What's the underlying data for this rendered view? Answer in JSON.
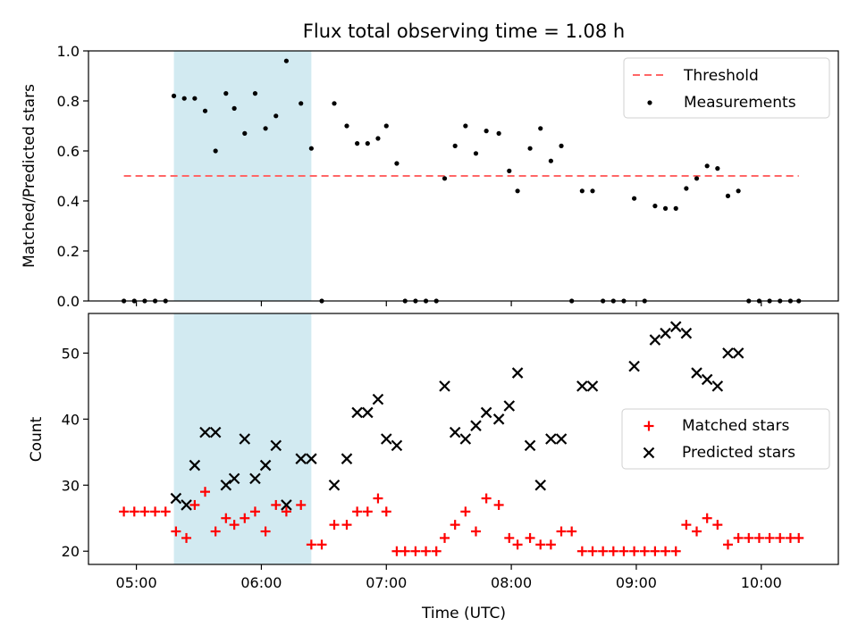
{
  "chart_data": [
    {
      "type": "scatter",
      "title": "Flux total observing time = 1.08 h",
      "xlabel": "",
      "ylabel": "Matched/Predicted stars",
      "ylim": [
        0,
        1.0
      ],
      "yticks": [
        "0.0",
        "0.2",
        "0.4",
        "0.6",
        "0.8",
        "1.0"
      ],
      "legend_position": "top-right",
      "shaded_interval": {
        "start": "05:18",
        "end": "06:24",
        "color": "#add8e6"
      },
      "threshold": {
        "name": "Threshold",
        "value": 0.5,
        "x_start": "04:54",
        "x_end": "10:18",
        "color": "#ff6666"
      },
      "series": [
        {
          "name": "Measurements",
          "marker": "dot",
          "color": "#000000",
          "x": [
            "04:54",
            "04:59",
            "05:04",
            "05:09",
            "05:14",
            "05:18",
            "05:23",
            "05:28",
            "05:33",
            "05:38",
            "05:43",
            "05:47",
            "05:52",
            "05:57",
            "06:02",
            "06:07",
            "06:12",
            "06:19",
            "06:24",
            "06:29",
            "06:35",
            "06:41",
            "06:46",
            "06:51",
            "06:56",
            "07:00",
            "07:05",
            "07:09",
            "07:14",
            "07:19",
            "07:24",
            "07:28",
            "07:33",
            "07:38",
            "07:43",
            "07:48",
            "07:54",
            "07:59",
            "08:03",
            "08:09",
            "08:14",
            "08:19",
            "08:24",
            "08:29",
            "08:34",
            "08:39",
            "08:44",
            "08:49",
            "08:54",
            "08:59",
            "09:04",
            "09:09",
            "09:14",
            "09:19",
            "09:24",
            "09:29",
            "09:34",
            "09:39",
            "09:44",
            "09:49",
            "09:54",
            "09:59",
            "10:04",
            "10:09",
            "10:14",
            "10:18"
          ],
          "y": [
            0,
            0,
            0,
            0,
            0,
            0.82,
            0.81,
            0.81,
            0.76,
            0.6,
            0.83,
            0.77,
            0.67,
            0.83,
            0.69,
            0.74,
            0.96,
            0.79,
            0.61,
            0,
            0.79,
            0.7,
            0.63,
            0.63,
            0.65,
            0.7,
            0.55,
            0,
            0,
            0,
            0,
            0.49,
            0.62,
            0.7,
            0.59,
            0.68,
            0.67,
            0.52,
            0.44,
            0.61,
            0.69,
            0.56,
            0.62,
            0,
            0.44,
            0.44,
            0,
            0,
            0,
            0.41,
            0,
            0.38,
            0.37,
            0.37,
            0.45,
            0.49,
            0.54,
            0.53,
            0.42,
            0.44,
            0,
            0,
            0,
            0,
            0,
            0
          ]
        }
      ]
    },
    {
      "type": "scatter",
      "title": "",
      "xlabel": "Time (UTC)",
      "ylabel": "Count",
      "ylim": [
        18,
        56
      ],
      "yticks": [
        "20",
        "30",
        "40",
        "50"
      ],
      "xticks": [
        "05:00",
        "06:00",
        "07:00",
        "08:00",
        "09:00",
        "10:00"
      ],
      "xlim": [
        "04:37",
        "10:37"
      ],
      "legend_position": "center-right",
      "shaded_interval": {
        "start": "05:18",
        "end": "06:24",
        "color": "#add8e6"
      },
      "series": [
        {
          "name": "Matched stars",
          "marker": "plus",
          "color": "#ff0000",
          "x": [
            "04:54",
            "04:59",
            "05:04",
            "05:09",
            "05:14",
            "05:19",
            "05:24",
            "05:28",
            "05:33",
            "05:38",
            "05:43",
            "05:47",
            "05:52",
            "05:57",
            "06:02",
            "06:07",
            "06:12",
            "06:19",
            "06:24",
            "06:29",
            "06:35",
            "06:41",
            "06:46",
            "06:51",
            "06:56",
            "07:00",
            "07:05",
            "07:09",
            "07:14",
            "07:19",
            "07:24",
            "07:28",
            "07:33",
            "07:38",
            "07:43",
            "07:48",
            "07:54",
            "07:59",
            "08:03",
            "08:09",
            "08:14",
            "08:19",
            "08:24",
            "08:29",
            "08:34",
            "08:39",
            "08:44",
            "08:49",
            "08:54",
            "08:59",
            "09:04",
            "09:09",
            "09:14",
            "09:19",
            "09:24",
            "09:29",
            "09:34",
            "09:39",
            "09:44",
            "09:49",
            "09:54",
            "09:59",
            "10:04",
            "10:09",
            "10:14",
            "10:18"
          ],
          "y": [
            26,
            26,
            26,
            26,
            26,
            23,
            22,
            27,
            29,
            23,
            25,
            24,
            25,
            26,
            23,
            27,
            26,
            27,
            21,
            21,
            24,
            24,
            26,
            26,
            28,
            26,
            20,
            20,
            20,
            20,
            20,
            22,
            24,
            26,
            23,
            28,
            27,
            22,
            21,
            22,
            21,
            21,
            23,
            23,
            20,
            20,
            20,
            20,
            20,
            20,
            20,
            20,
            20,
            20,
            24,
            23,
            25,
            24,
            21,
            22,
            22,
            22,
            22,
            22,
            22,
            22
          ]
        },
        {
          "name": "Predicted stars",
          "marker": "x",
          "color": "#000000",
          "x": [
            "05:19",
            "05:24",
            "05:28",
            "05:33",
            "05:38",
            "05:43",
            "05:47",
            "05:52",
            "05:57",
            "06:02",
            "06:07",
            "06:12",
            "06:19",
            "06:24",
            "06:35",
            "06:41",
            "06:46",
            "06:51",
            "06:56",
            "07:00",
            "07:05",
            "07:28",
            "07:33",
            "07:38",
            "07:43",
            "07:48",
            "07:54",
            "07:59",
            "08:03",
            "08:09",
            "08:14",
            "08:19",
            "08:24",
            "08:34",
            "08:39",
            "08:59",
            "09:09",
            "09:14",
            "09:19",
            "09:24",
            "09:29",
            "09:34",
            "09:39",
            "09:44",
            "09:49"
          ],
          "y": [
            28,
            27,
            33,
            38,
            38,
            30,
            31,
            37,
            31,
            33,
            36,
            27,
            34,
            34,
            30,
            34,
            41,
            41,
            43,
            37,
            36,
            45,
            38,
            37,
            39,
            41,
            40,
            42,
            47,
            36,
            30,
            37,
            37,
            45,
            45,
            48,
            52,
            53,
            54,
            53,
            47,
            46,
            45,
            50,
            50
          ]
        }
      ]
    }
  ]
}
